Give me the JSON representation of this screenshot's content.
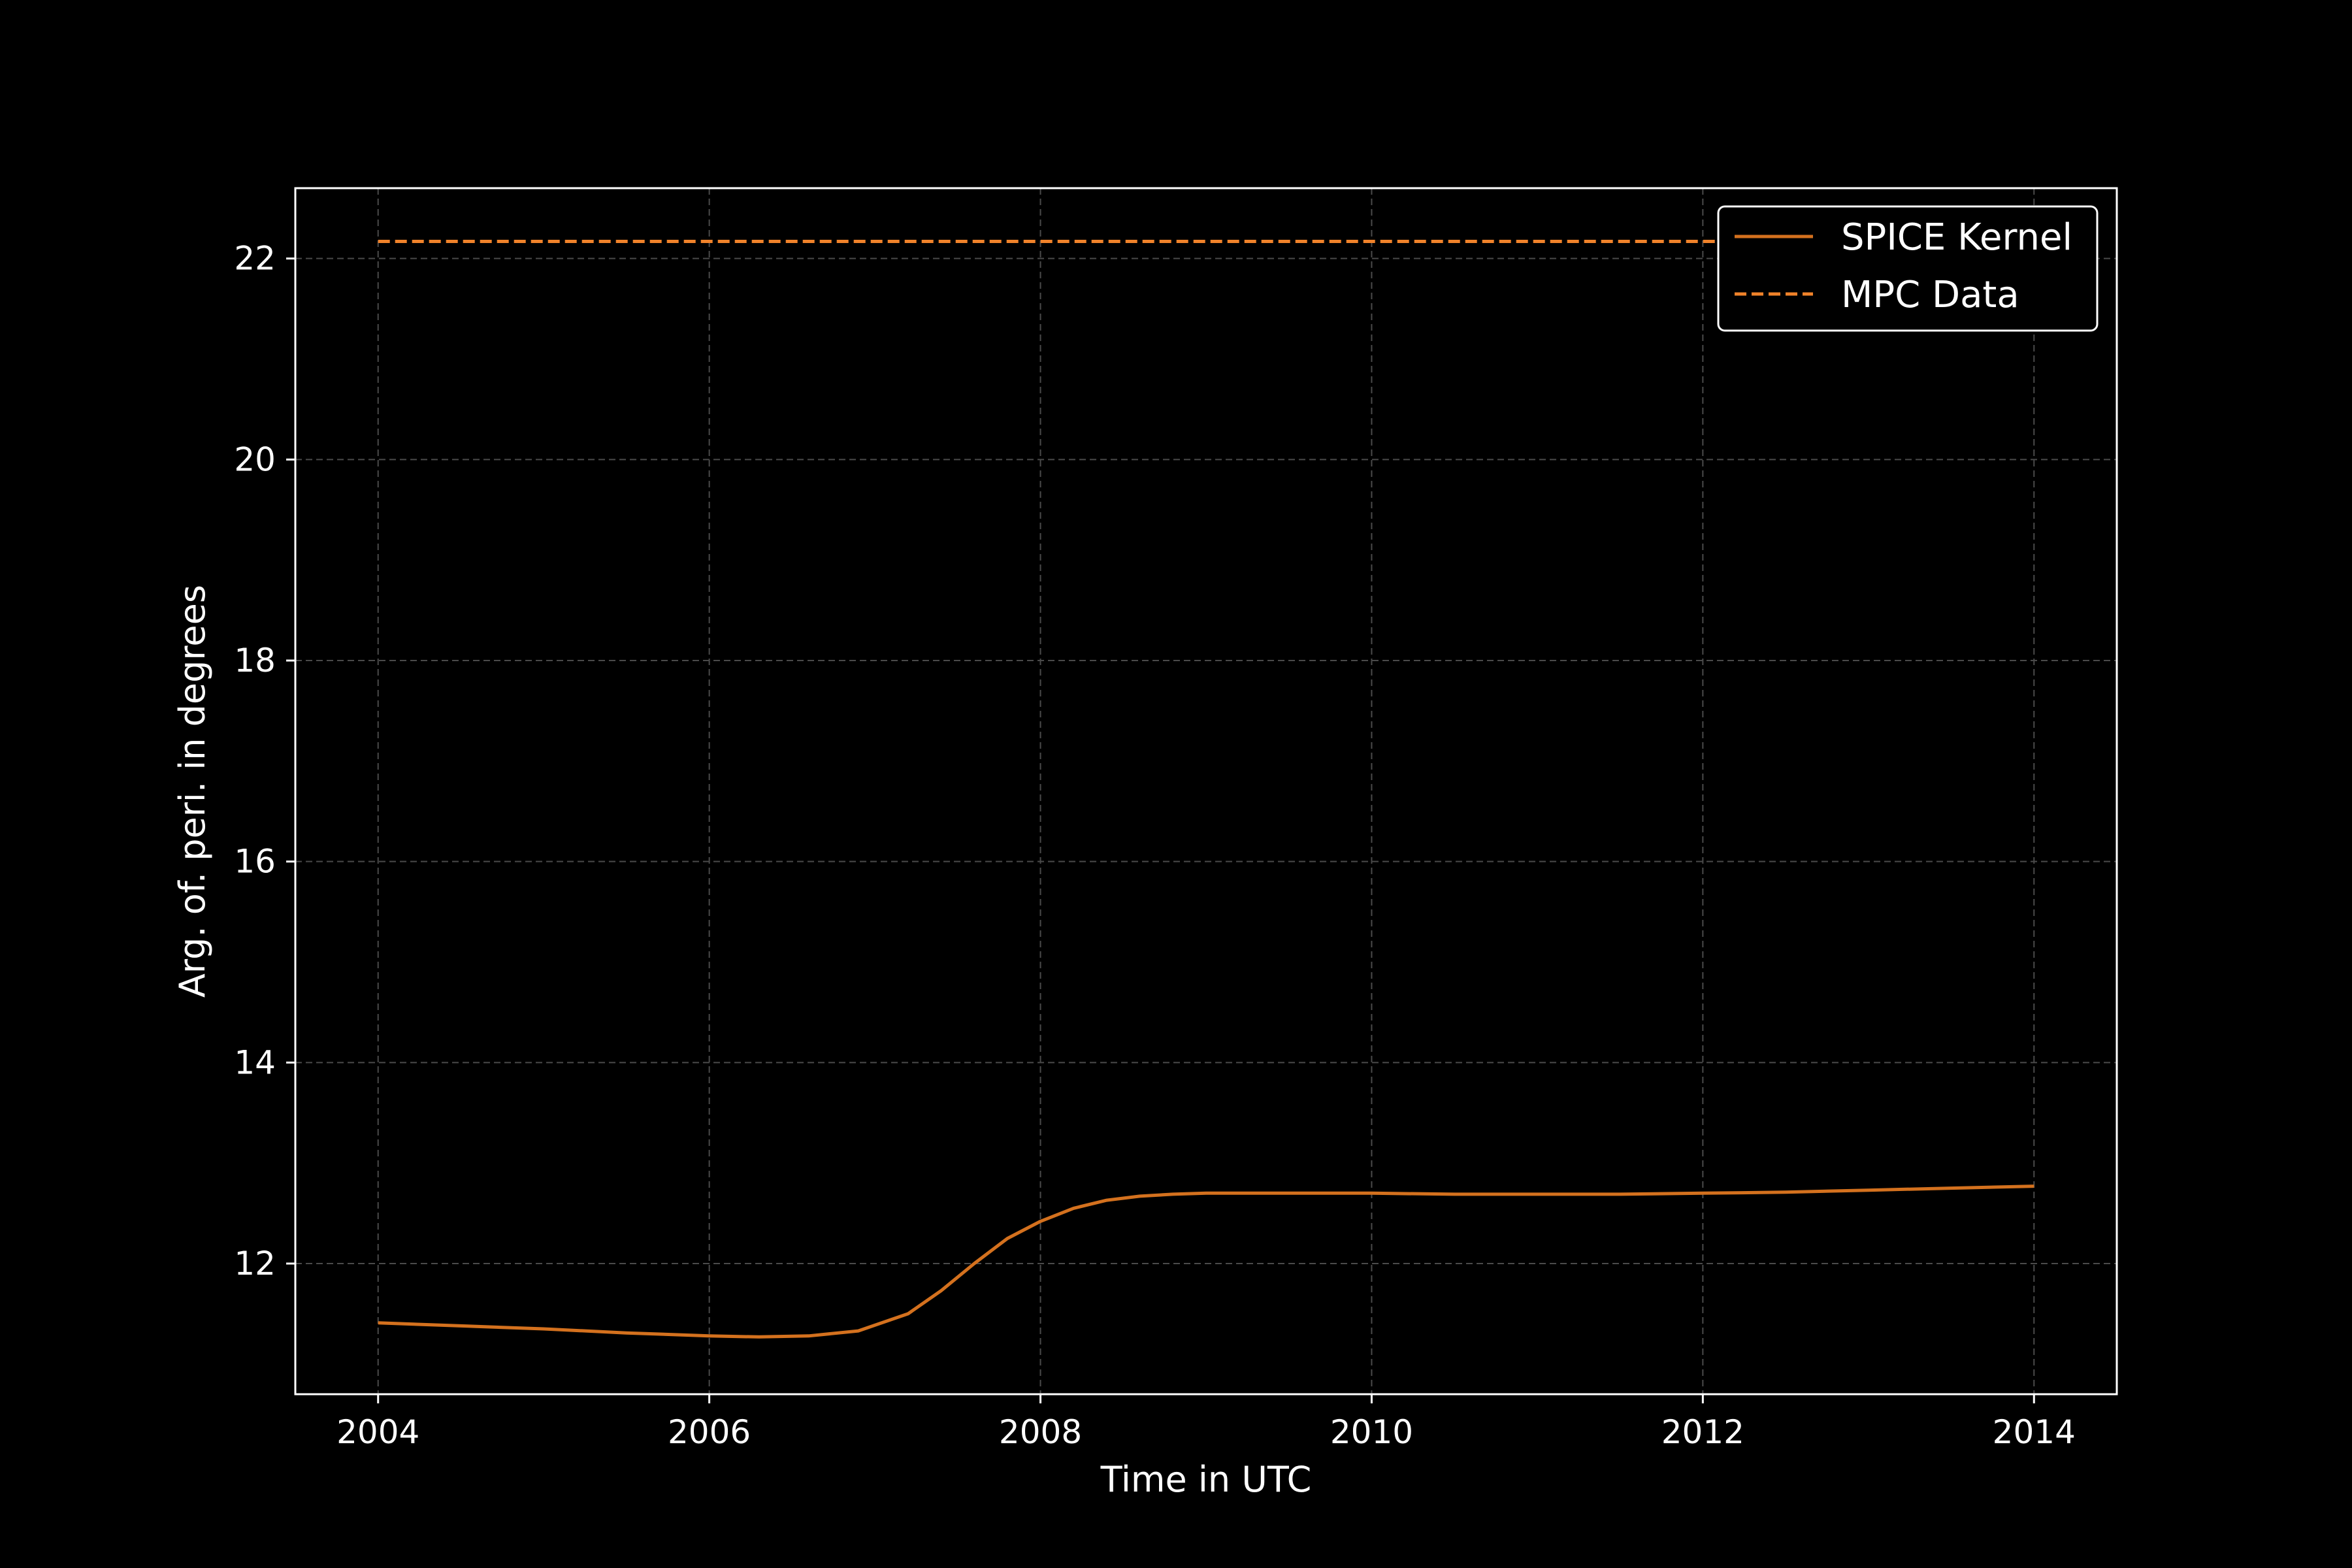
{
  "chart_data": {
    "type": "line",
    "title": "",
    "xlabel": "Time in UTC",
    "ylabel": "Arg. of. peri. in degrees",
    "xlim": [
      2003.5,
      2014.5
    ],
    "ylim": [
      10.7,
      22.7
    ],
    "x_ticks": [
      2004,
      2006,
      2008,
      2010,
      2012,
      2014
    ],
    "x_tick_labels": [
      "2004",
      "2006",
      "2008",
      "2010",
      "2012",
      "2014"
    ],
    "y_ticks": [
      12,
      14,
      16,
      18,
      20,
      22
    ],
    "y_tick_labels": [
      "12",
      "14",
      "16",
      "18",
      "20",
      "22"
    ],
    "grid": true,
    "legend_position": "top-right",
    "series": [
      {
        "name": "SPICE Kernel",
        "style": "solid",
        "color": "#d4711e",
        "x": [
          2004,
          2004.5,
          2005,
          2005.5,
          2006,
          2006.3,
          2006.6,
          2006.9,
          2007.2,
          2007.4,
          2007.6,
          2007.8,
          2008,
          2008.2,
          2008.4,
          2008.6,
          2008.8,
          2009,
          2009.5,
          2010,
          2010.5,
          2011,
          2011.5,
          2012,
          2012.5,
          2013,
          2013.5,
          2014
        ],
        "y": [
          11.41,
          11.38,
          11.35,
          11.31,
          11.28,
          11.27,
          11.28,
          11.33,
          11.5,
          11.73,
          12.0,
          12.25,
          12.42,
          12.55,
          12.63,
          12.67,
          12.69,
          12.7,
          12.7,
          12.7,
          12.69,
          12.69,
          12.69,
          12.7,
          12.71,
          12.73,
          12.75,
          12.77
        ]
      },
      {
        "name": "MPC Data",
        "style": "dashed",
        "color": "#f0822a",
        "x": [
          2004,
          2014
        ],
        "y": [
          22.17,
          22.17
        ]
      }
    ]
  }
}
